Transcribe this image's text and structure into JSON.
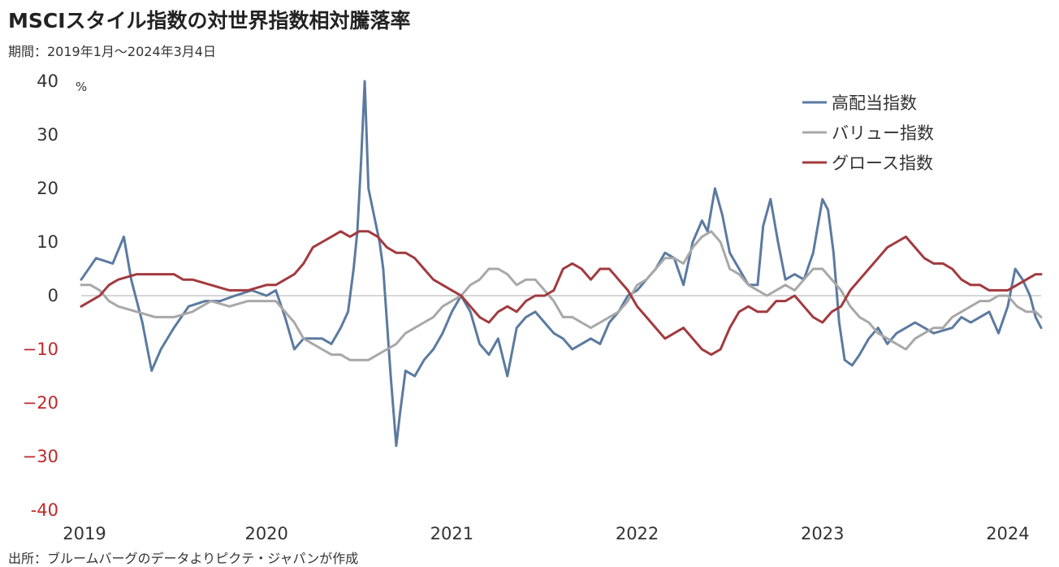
{
  "header": {
    "title": "MSCIスタイル指数の対世界指数相対騰落率",
    "period": "期間：2019年1月～2024年3月4日"
  },
  "footer": {
    "source": "出所：ブルームバーグのデータよりピクテ・ジャパンが作成"
  },
  "chart_data": {
    "type": "line",
    "title": "MSCIスタイル指数の対世界指数相対騰落率",
    "ylabel": "%",
    "xlabel": "",
    "ylim": [
      -40,
      40
    ],
    "xlim": [
      2019.0,
      2024.18
    ],
    "yticks": [
      40,
      30,
      20,
      10,
      0,
      -10,
      -20,
      -30,
      -40
    ],
    "yticks_labels": [
      "40",
      "30",
      "20",
      "10",
      "0",
      "−10",
      "−20",
      "−30",
      "-40"
    ],
    "xticks": [
      2019,
      2020,
      2021,
      2022,
      2023,
      2024
    ],
    "xticks_labels": [
      "2019",
      "2020",
      "2021",
      "2022",
      "2023",
      "2024"
    ],
    "negative_tick_color": "#c0282a",
    "grid": false,
    "legend_position": "top-right",
    "series": [
      {
        "name": "高配当指数",
        "color": "#5b7aa0",
        "points": [
          [
            2019.0,
            3
          ],
          [
            2019.08,
            7
          ],
          [
            2019.17,
            6
          ],
          [
            2019.23,
            11
          ],
          [
            2019.27,
            3
          ],
          [
            2019.33,
            -5
          ],
          [
            2019.38,
            -14
          ],
          [
            2019.43,
            -10
          ],
          [
            2019.5,
            -6
          ],
          [
            2019.58,
            -2
          ],
          [
            2019.67,
            -1
          ],
          [
            2019.75,
            -1
          ],
          [
            2019.83,
            0
          ],
          [
            2019.92,
            1
          ],
          [
            2020.0,
            0
          ],
          [
            2020.05,
            1
          ],
          [
            2020.1,
            -4
          ],
          [
            2020.15,
            -10
          ],
          [
            2020.2,
            -8
          ],
          [
            2020.3,
            -8
          ],
          [
            2020.35,
            -9
          ],
          [
            2020.4,
            -6
          ],
          [
            2020.44,
            -3
          ],
          [
            2020.47,
            5
          ],
          [
            2020.49,
            12
          ],
          [
            2020.51,
            25
          ],
          [
            2020.53,
            40
          ],
          [
            2020.55,
            20
          ],
          [
            2020.58,
            15
          ],
          [
            2020.61,
            10
          ],
          [
            2020.63,
            5
          ],
          [
            2020.65,
            -5
          ],
          [
            2020.67,
            -15
          ],
          [
            2020.7,
            -28
          ],
          [
            2020.72,
            -22
          ],
          [
            2020.75,
            -14
          ],
          [
            2020.8,
            -15
          ],
          [
            2020.85,
            -12
          ],
          [
            2020.9,
            -10
          ],
          [
            2020.95,
            -7
          ],
          [
            2021.0,
            -3
          ],
          [
            2021.05,
            0
          ],
          [
            2021.1,
            -3
          ],
          [
            2021.15,
            -9
          ],
          [
            2021.2,
            -11
          ],
          [
            2021.25,
            -8
          ],
          [
            2021.3,
            -15
          ],
          [
            2021.35,
            -6
          ],
          [
            2021.4,
            -4
          ],
          [
            2021.45,
            -3
          ],
          [
            2021.5,
            -5
          ],
          [
            2021.55,
            -7
          ],
          [
            2021.6,
            -8
          ],
          [
            2021.65,
            -10
          ],
          [
            2021.7,
            -9
          ],
          [
            2021.75,
            -8
          ],
          [
            2021.8,
            -9
          ],
          [
            2021.85,
            -5
          ],
          [
            2021.9,
            -3
          ],
          [
            2021.95,
            0
          ],
          [
            2022.0,
            1
          ],
          [
            2022.05,
            3
          ],
          [
            2022.1,
            5
          ],
          [
            2022.15,
            8
          ],
          [
            2022.2,
            7
          ],
          [
            2022.25,
            2
          ],
          [
            2022.3,
            10
          ],
          [
            2022.35,
            14
          ],
          [
            2022.38,
            12
          ],
          [
            2022.42,
            20
          ],
          [
            2022.46,
            15
          ],
          [
            2022.5,
            8
          ],
          [
            2022.55,
            5
          ],
          [
            2022.6,
            2
          ],
          [
            2022.65,
            2
          ],
          [
            2022.68,
            13
          ],
          [
            2022.72,
            18
          ],
          [
            2022.76,
            10
          ],
          [
            2022.8,
            3
          ],
          [
            2022.85,
            4
          ],
          [
            2022.9,
            3
          ],
          [
            2022.95,
            8
          ],
          [
            2023.0,
            18
          ],
          [
            2023.03,
            16
          ],
          [
            2023.06,
            8
          ],
          [
            2023.09,
            -5
          ],
          [
            2023.12,
            -12
          ],
          [
            2023.16,
            -13
          ],
          [
            2023.2,
            -11
          ],
          [
            2023.25,
            -8
          ],
          [
            2023.3,
            -6
          ],
          [
            2023.35,
            -9
          ],
          [
            2023.4,
            -7
          ],
          [
            2023.5,
            -5
          ],
          [
            2023.6,
            -7
          ],
          [
            2023.7,
            -6
          ],
          [
            2023.75,
            -4
          ],
          [
            2023.8,
            -5
          ],
          [
            2023.85,
            -4
          ],
          [
            2023.9,
            -3
          ],
          [
            2023.95,
            -7
          ],
          [
            2024.0,
            -2
          ],
          [
            2024.04,
            5
          ],
          [
            2024.08,
            3
          ],
          [
            2024.12,
            0
          ],
          [
            2024.15,
            -4
          ],
          [
            2024.18,
            -6
          ]
        ]
      },
      {
        "name": "バリュー指数",
        "color": "#a8a8a8",
        "points": [
          [
            2019.0,
            2
          ],
          [
            2019.05,
            2
          ],
          [
            2019.1,
            1
          ],
          [
            2019.15,
            -1
          ],
          [
            2019.2,
            -2
          ],
          [
            2019.3,
            -3
          ],
          [
            2019.4,
            -4
          ],
          [
            2019.5,
            -4
          ],
          [
            2019.6,
            -3
          ],
          [
            2019.7,
            -1
          ],
          [
            2019.8,
            -2
          ],
          [
            2019.9,
            -1
          ],
          [
            2020.0,
            -1
          ],
          [
            2020.05,
            -1
          ],
          [
            2020.1,
            -3
          ],
          [
            2020.15,
            -5
          ],
          [
            2020.2,
            -8
          ],
          [
            2020.25,
            -9
          ],
          [
            2020.3,
            -10
          ],
          [
            2020.35,
            -11
          ],
          [
            2020.4,
            -11
          ],
          [
            2020.45,
            -12
          ],
          [
            2020.5,
            -12
          ],
          [
            2020.55,
            -12
          ],
          [
            2020.6,
            -11
          ],
          [
            2020.65,
            -10
          ],
          [
            2020.7,
            -9
          ],
          [
            2020.75,
            -7
          ],
          [
            2020.8,
            -6
          ],
          [
            2020.85,
            -5
          ],
          [
            2020.9,
            -4
          ],
          [
            2020.95,
            -2
          ],
          [
            2021.0,
            -1
          ],
          [
            2021.05,
            0
          ],
          [
            2021.1,
            2
          ],
          [
            2021.15,
            3
          ],
          [
            2021.2,
            5
          ],
          [
            2021.25,
            5
          ],
          [
            2021.3,
            4
          ],
          [
            2021.35,
            2
          ],
          [
            2021.4,
            3
          ],
          [
            2021.45,
            3
          ],
          [
            2021.5,
            1
          ],
          [
            2021.55,
            -1
          ],
          [
            2021.6,
            -4
          ],
          [
            2021.65,
            -4
          ],
          [
            2021.7,
            -5
          ],
          [
            2021.75,
            -6
          ],
          [
            2021.8,
            -5
          ],
          [
            2021.85,
            -4
          ],
          [
            2021.9,
            -3
          ],
          [
            2021.95,
            -1
          ],
          [
            2022.0,
            2
          ],
          [
            2022.05,
            3
          ],
          [
            2022.1,
            5
          ],
          [
            2022.15,
            7
          ],
          [
            2022.2,
            7
          ],
          [
            2022.25,
            6
          ],
          [
            2022.3,
            9
          ],
          [
            2022.35,
            11
          ],
          [
            2022.4,
            12
          ],
          [
            2022.45,
            10
          ],
          [
            2022.5,
            5
          ],
          [
            2022.55,
            4
          ],
          [
            2022.6,
            2
          ],
          [
            2022.65,
            1
          ],
          [
            2022.7,
            0
          ],
          [
            2022.75,
            1
          ],
          [
            2022.8,
            2
          ],
          [
            2022.85,
            1
          ],
          [
            2022.9,
            3
          ],
          [
            2022.95,
            5
          ],
          [
            2023.0,
            5
          ],
          [
            2023.05,
            3
          ],
          [
            2023.1,
            1
          ],
          [
            2023.15,
            -2
          ],
          [
            2023.2,
            -4
          ],
          [
            2023.25,
            -5
          ],
          [
            2023.3,
            -7
          ],
          [
            2023.35,
            -8
          ],
          [
            2023.4,
            -9
          ],
          [
            2023.45,
            -10
          ],
          [
            2023.5,
            -8
          ],
          [
            2023.55,
            -7
          ],
          [
            2023.6,
            -6
          ],
          [
            2023.65,
            -6
          ],
          [
            2023.7,
            -4
          ],
          [
            2023.75,
            -3
          ],
          [
            2023.8,
            -2
          ],
          [
            2023.85,
            -1
          ],
          [
            2023.9,
            -1
          ],
          [
            2023.95,
            0
          ],
          [
            2024.0,
            0
          ],
          [
            2024.05,
            -2
          ],
          [
            2024.1,
            -3
          ],
          [
            2024.15,
            -3
          ],
          [
            2024.18,
            -4
          ]
        ]
      },
      {
        "name": "グロース指数",
        "color": "#a23a3e",
        "points": [
          [
            2019.0,
            -2
          ],
          [
            2019.05,
            -1
          ],
          [
            2019.1,
            0
          ],
          [
            2019.15,
            2
          ],
          [
            2019.2,
            3
          ],
          [
            2019.3,
            4
          ],
          [
            2019.4,
            4
          ],
          [
            2019.5,
            4
          ],
          [
            2019.55,
            3
          ],
          [
            2019.6,
            3
          ],
          [
            2019.7,
            2
          ],
          [
            2019.8,
            1
          ],
          [
            2019.9,
            1
          ],
          [
            2020.0,
            2
          ],
          [
            2020.05,
            2
          ],
          [
            2020.1,
            3
          ],
          [
            2020.15,
            4
          ],
          [
            2020.2,
            6
          ],
          [
            2020.25,
            9
          ],
          [
            2020.3,
            10
          ],
          [
            2020.35,
            11
          ],
          [
            2020.4,
            12
          ],
          [
            2020.45,
            11
          ],
          [
            2020.5,
            12
          ],
          [
            2020.55,
            12
          ],
          [
            2020.6,
            11
          ],
          [
            2020.65,
            9
          ],
          [
            2020.7,
            8
          ],
          [
            2020.75,
            8
          ],
          [
            2020.8,
            7
          ],
          [
            2020.85,
            5
          ],
          [
            2020.9,
            3
          ],
          [
            2020.95,
            2
          ],
          [
            2021.0,
            1
          ],
          [
            2021.05,
            0
          ],
          [
            2021.1,
            -2
          ],
          [
            2021.15,
            -4
          ],
          [
            2021.2,
            -5
          ],
          [
            2021.25,
            -3
          ],
          [
            2021.3,
            -2
          ],
          [
            2021.35,
            -3
          ],
          [
            2021.4,
            -1
          ],
          [
            2021.45,
            0
          ],
          [
            2021.5,
            0
          ],
          [
            2021.55,
            1
          ],
          [
            2021.6,
            5
          ],
          [
            2021.65,
            6
          ],
          [
            2021.7,
            5
          ],
          [
            2021.75,
            3
          ],
          [
            2021.8,
            5
          ],
          [
            2021.85,
            5
          ],
          [
            2021.9,
            3
          ],
          [
            2021.95,
            1
          ],
          [
            2022.0,
            -2
          ],
          [
            2022.05,
            -4
          ],
          [
            2022.1,
            -6
          ],
          [
            2022.15,
            -8
          ],
          [
            2022.2,
            -7
          ],
          [
            2022.25,
            -6
          ],
          [
            2022.3,
            -8
          ],
          [
            2022.35,
            -10
          ],
          [
            2022.4,
            -11
          ],
          [
            2022.45,
            -10
          ],
          [
            2022.5,
            -6
          ],
          [
            2022.55,
            -3
          ],
          [
            2022.6,
            -2
          ],
          [
            2022.65,
            -3
          ],
          [
            2022.7,
            -3
          ],
          [
            2022.75,
            -1
          ],
          [
            2022.8,
            -1
          ],
          [
            2022.85,
            0
          ],
          [
            2022.9,
            -2
          ],
          [
            2022.95,
            -4
          ],
          [
            2023.0,
            -5
          ],
          [
            2023.05,
            -3
          ],
          [
            2023.1,
            -2
          ],
          [
            2023.15,
            1
          ],
          [
            2023.2,
            3
          ],
          [
            2023.25,
            5
          ],
          [
            2023.3,
            7
          ],
          [
            2023.35,
            9
          ],
          [
            2023.4,
            10
          ],
          [
            2023.45,
            11
          ],
          [
            2023.5,
            9
          ],
          [
            2023.55,
            7
          ],
          [
            2023.6,
            6
          ],
          [
            2023.65,
            6
          ],
          [
            2023.7,
            5
          ],
          [
            2023.75,
            3
          ],
          [
            2023.8,
            2
          ],
          [
            2023.85,
            2
          ],
          [
            2023.9,
            1
          ],
          [
            2023.95,
            1
          ],
          [
            2024.0,
            1
          ],
          [
            2024.05,
            2
          ],
          [
            2024.1,
            3
          ],
          [
            2024.15,
            4
          ],
          [
            2024.18,
            4
          ]
        ]
      }
    ]
  }
}
